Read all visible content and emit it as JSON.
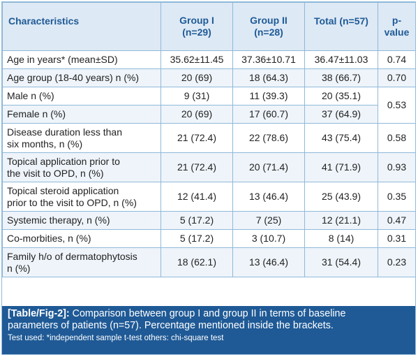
{
  "table": {
    "headers": {
      "characteristics": "Characteristics",
      "group1_line1": "Group I",
      "group1_line2": "(n=29)",
      "group2_line1": "Group II",
      "group2_line2": "(n=28)",
      "total": "Total (n=57)",
      "pvalue_line1": "p-",
      "pvalue_line2": "value"
    },
    "rows": [
      {
        "label": "Age in years* (mean±SD)",
        "g1": "35.62±11.45",
        "g2": "37.36±10.71",
        "total": "36.47±11.03",
        "p": "0.74"
      },
      {
        "label": "Age group (18-40 years) n (%)",
        "g1": "20 (69)",
        "g2": "18 (64.3)",
        "total": "38 (66.7)",
        "p": "0.70"
      },
      {
        "label": "Male n (%)",
        "g1": "9 (31)",
        "g2": "11 (39.3)",
        "total": "20 (35.1)",
        "p": "0.53"
      },
      {
        "label": "Female n (%)",
        "g1": "20 (69)",
        "g2": "17 (60.7)",
        "total": "37 (64.9)"
      },
      {
        "label_line1": "Disease duration less than",
        "label_line2": "six months, n (%)",
        "g1": "21 (72.4)",
        "g2": "22 (78.6)",
        "total": "43 (75.4)",
        "p": "0.58"
      },
      {
        "label_line1": "Topical application prior to",
        "label_line2": "the visit to OPD, n (%)",
        "g1": "21 (72.4)",
        "g2": "20 (71.4)",
        "total": "41 (71.9)",
        "p": "0.93"
      },
      {
        "label_line1": "Topical steroid application",
        "label_line2": "prior to the visit to OPD, n (%)",
        "g1": "12 (41.4)",
        "g2": "13 (46.4)",
        "total": "25 (43.9)",
        "p": "0.35"
      },
      {
        "label": "Systemic therapy, n (%)",
        "g1": "5 (17.2)",
        "g2": "7 (25)",
        "total": "12 (21.1)",
        "p": "0.47"
      },
      {
        "label": "Co-morbities, n (%)",
        "g1": "5 (17.2)",
        "g2": "3 (10.7)",
        "total": "8 (14)",
        "p": "0.31"
      },
      {
        "label_line1": "Family h/o of dermatophytosis",
        "label_line2": "n (%)",
        "g1": "18 (62.1)",
        "g2": "13 (46.4)",
        "total": "31 (54.4)",
        "p": "0.23"
      }
    ]
  },
  "caption": {
    "label": "[Table/Fig-2]:",
    "text_line1": " Comparison between group I and group II in terms of baseline",
    "text_line2": "parameters of patients (n=57). Percentage mentioned inside the brackets.",
    "note": "Test used: *independent sample t-test others: chi-square test"
  },
  "colors": {
    "header_bg": "#dde9f5",
    "header_text": "#1f5a96",
    "border": "#8fb9d9",
    "stripe": "#eef4fa",
    "caption_bg": "#1f5a96"
  }
}
